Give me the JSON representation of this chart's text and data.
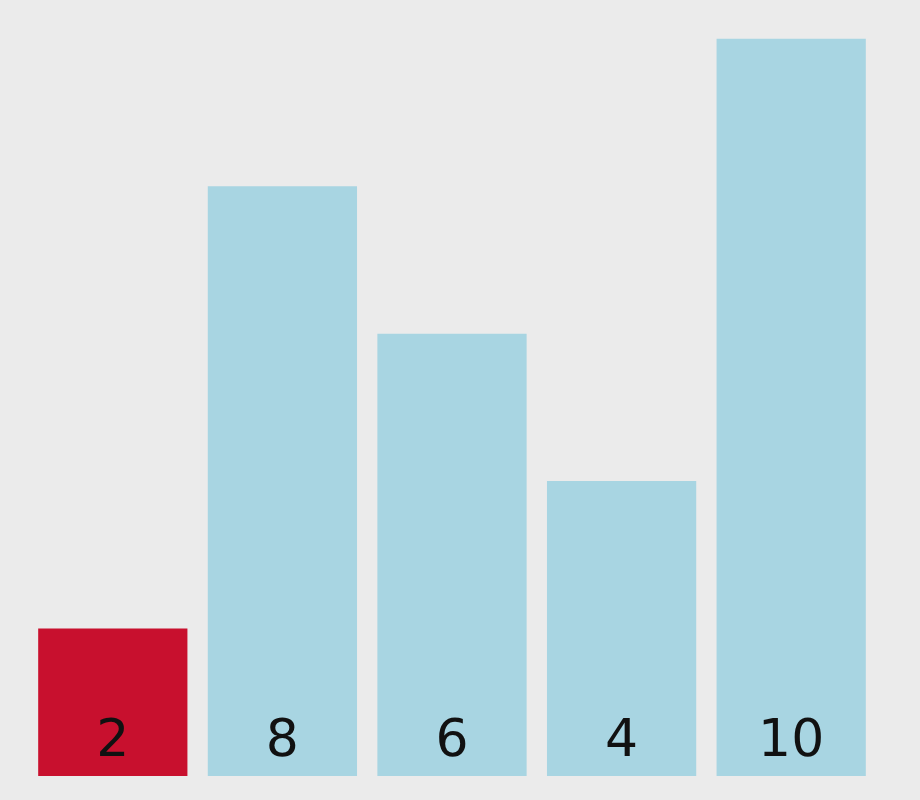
{
  "chart_data": {
    "type": "bar",
    "categories": [
      null,
      null,
      null,
      null,
      null
    ],
    "values": [
      2,
      8,
      6,
      4,
      10
    ],
    "colors": [
      "#c8102e",
      "#a8d5e2",
      "#a8d5e2",
      "#a8d5e2",
      "#a8d5e2"
    ],
    "data_labels": true,
    "tick_labels": false
  }
}
